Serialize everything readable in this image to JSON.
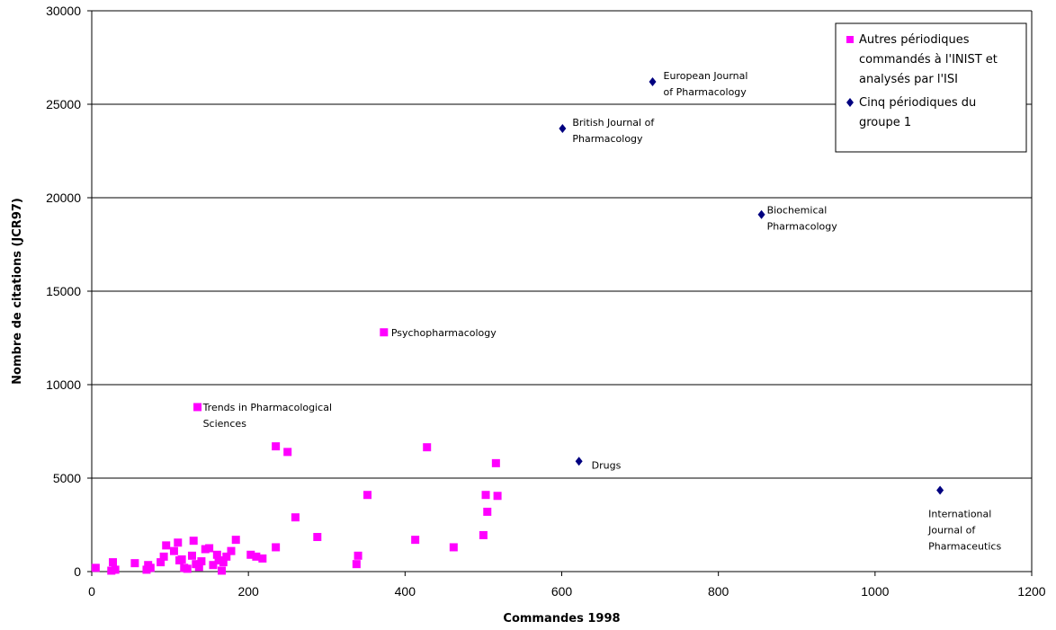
{
  "chart_data": {
    "type": "scatter",
    "title": "",
    "xlabel": "Commandes 1998",
    "ylabel": "Nombre de citations (JCR97)",
    "xlim": [
      0,
      1200
    ],
    "ylim": [
      0,
      30000
    ],
    "xticks": [
      0,
      200,
      400,
      600,
      800,
      1000,
      1200
    ],
    "yticks": [
      0,
      5000,
      10000,
      15000,
      20000,
      25000,
      30000
    ],
    "grid": "horizontal",
    "legend_position": "top-right",
    "series": [
      {
        "name": "Autres périodiques commandés à l'INIST et analysés par l'ISI",
        "color": "#ff00ff",
        "marker": "square",
        "points": [
          {
            "x": 5,
            "y": 200
          },
          {
            "x": 25,
            "y": 50
          },
          {
            "x": 27,
            "y": 500
          },
          {
            "x": 30,
            "y": 100
          },
          {
            "x": 55,
            "y": 450
          },
          {
            "x": 70,
            "y": 100
          },
          {
            "x": 72,
            "y": 350
          },
          {
            "x": 75,
            "y": 200
          },
          {
            "x": 88,
            "y": 500
          },
          {
            "x": 92,
            "y": 800
          },
          {
            "x": 95,
            "y": 1400
          },
          {
            "x": 105,
            "y": 1100
          },
          {
            "x": 110,
            "y": 1550
          },
          {
            "x": 112,
            "y": 600
          },
          {
            "x": 115,
            "y": 650
          },
          {
            "x": 118,
            "y": 200
          },
          {
            "x": 122,
            "y": 150
          },
          {
            "x": 128,
            "y": 850
          },
          {
            "x": 130,
            "y": 1650
          },
          {
            "x": 133,
            "y": 400
          },
          {
            "x": 137,
            "y": 250
          },
          {
            "x": 140,
            "y": 550
          },
          {
            "x": 145,
            "y": 1200
          },
          {
            "x": 150,
            "y": 1250
          },
          {
            "x": 155,
            "y": 350
          },
          {
            "x": 160,
            "y": 900
          },
          {
            "x": 162,
            "y": 600
          },
          {
            "x": 166,
            "y": 50
          },
          {
            "x": 168,
            "y": 500
          },
          {
            "x": 172,
            "y": 800
          },
          {
            "x": 178,
            "y": 1100
          },
          {
            "x": 184,
            "y": 1700
          },
          {
            "x": 203,
            "y": 900
          },
          {
            "x": 210,
            "y": 800
          },
          {
            "x": 218,
            "y": 700
          },
          {
            "x": 235,
            "y": 6700
          },
          {
            "x": 235,
            "y": 1300
          },
          {
            "x": 250,
            "y": 6400
          },
          {
            "x": 260,
            "y": 2900
          },
          {
            "x": 288,
            "y": 1850
          },
          {
            "x": 338,
            "y": 400
          },
          {
            "x": 340,
            "y": 850
          },
          {
            "x": 352,
            "y": 4100
          },
          {
            "x": 373,
            "y": 12800,
            "label": "Psychopharmacology"
          },
          {
            "x": 135,
            "y": 8800,
            "label": "Trends in Pharmacological Sciences"
          },
          {
            "x": 413,
            "y": 1700
          },
          {
            "x": 428,
            "y": 6650
          },
          {
            "x": 462,
            "y": 1300
          },
          {
            "x": 500,
            "y": 1950
          },
          {
            "x": 503,
            "y": 4100
          },
          {
            "x": 505,
            "y": 3200
          },
          {
            "x": 516,
            "y": 5800
          },
          {
            "x": 518,
            "y": 4050
          }
        ]
      },
      {
        "name": "Cinq périodiques du groupe 1",
        "color": "#000080",
        "marker": "diamond",
        "points": [
          {
            "x": 716,
            "y": 26200,
            "label": "European Journal of Pharmacology"
          },
          {
            "x": 601,
            "y": 23700,
            "label": "British Journal of Pharmacology"
          },
          {
            "x": 855,
            "y": 19100,
            "label": "Biochemical Pharmacology"
          },
          {
            "x": 622,
            "y": 5900,
            "label": "Drugs"
          },
          {
            "x": 1083,
            "y": 4350,
            "label": "International Journal of Pharmaceutics"
          }
        ]
      }
    ]
  }
}
